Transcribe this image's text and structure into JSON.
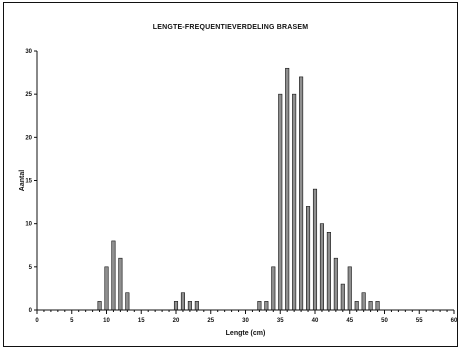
{
  "chart_data": {
    "type": "bar",
    "title": "LENGTE-FREQUENTIEVERDELING BRASEM",
    "xlabel": "Lengte (cm)",
    "ylabel": "Aantal",
    "xlim": [
      0,
      60
    ],
    "ylim": [
      0,
      30
    ],
    "x_ticks": [
      0,
      5,
      10,
      15,
      20,
      25,
      30,
      35,
      40,
      45,
      50,
      55,
      60
    ],
    "y_ticks": [
      0,
      5,
      10,
      15,
      20,
      25,
      30
    ],
    "grid": false,
    "legend": "none",
    "colors": {
      "bar": "#8f8f8f",
      "bar_edge": "#111111"
    },
    "x": [
      9,
      10,
      11,
      12,
      13,
      20,
      21,
      22,
      23,
      32,
      33,
      34,
      35,
      36,
      37,
      38,
      39,
      40,
      41,
      42,
      43,
      44,
      45,
      46,
      47,
      48,
      49
    ],
    "values": [
      1,
      5,
      8,
      6,
      2,
      1,
      2,
      1,
      1,
      1,
      1,
      5,
      25,
      28,
      25,
      27,
      12,
      14,
      10,
      9,
      6,
      3,
      5,
      1,
      2,
      1,
      1
    ]
  }
}
